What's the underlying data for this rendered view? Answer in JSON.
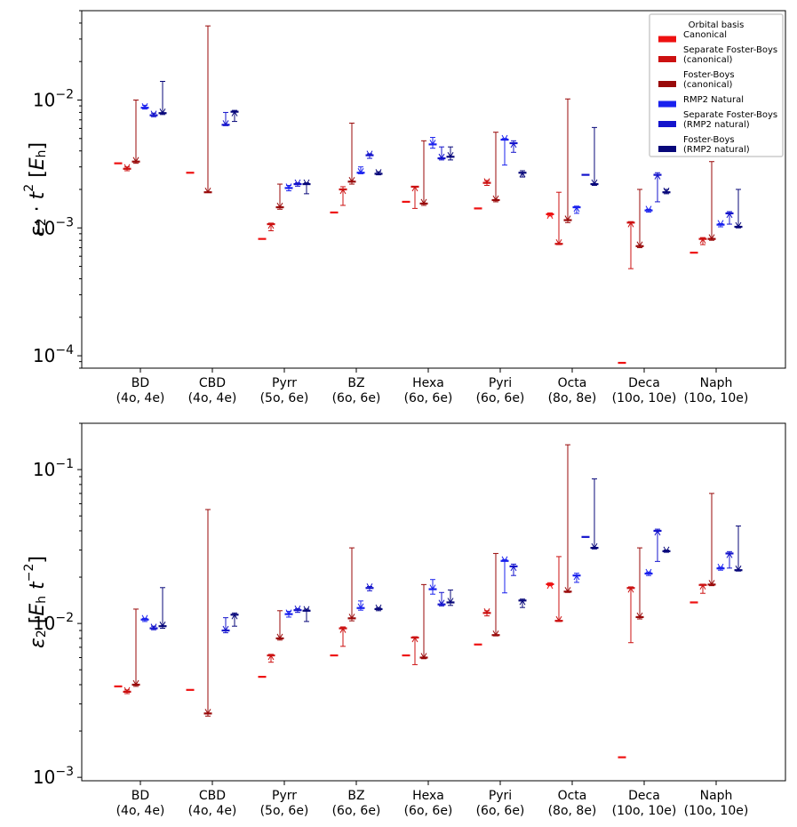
{
  "chart_data": [
    {
      "type": "scatter",
      "title": "",
      "yscale": "log",
      "ylim": [
        8e-05,
        0.05
      ],
      "ylabel": "ε2 · t^2 [Eh]",
      "xlabel": "",
      "yticks": [
        {
          "value": 0.0001,
          "mantissa": "10",
          "exp": "−4"
        },
        {
          "value": 0.001,
          "mantissa": "10",
          "exp": "−3"
        },
        {
          "value": 0.01,
          "mantissa": "10",
          "exp": "−2"
        }
      ],
      "legend": {
        "title": "Orbital basis",
        "position": "top-right",
        "entries": [
          {
            "lines": [
              "Canonical"
            ],
            "color": "#ee1111"
          },
          {
            "lines": [
              "Separate Foster-Boys",
              "(canonical)"
            ],
            "color": "#cc1111"
          },
          {
            "lines": [
              "Foster-Boys",
              "(canonical)"
            ],
            "color": "#990a0a"
          },
          {
            "lines": [
              "RMP2 Natural"
            ],
            "color": "#1a22ee"
          },
          {
            "lines": [
              "Separate Foster-Boys",
              "(RMP2 natural)"
            ],
            "color": "#1414cc"
          },
          {
            "lines": [
              "Foster-Boys",
              "(RMP2 natural)"
            ],
            "color": "#08087a"
          }
        ]
      },
      "categories": [
        {
          "name": "BD",
          "sub": "(4o, 4e)",
          "series": [
            {
              "v": 0.0032
            },
            {
              "v": 0.0029,
              "lo": 0.0028,
              "hi": 0.003,
              "d": "down"
            },
            {
              "v": 0.0033,
              "lo": 0.0032,
              "hi": 0.01,
              "d": "down"
            },
            {
              "v": 0.0087,
              "lo": 0.0085,
              "hi": 0.0091,
              "d": "down"
            },
            {
              "v": 0.0076,
              "lo": 0.0074,
              "hi": 0.0079,
              "d": "down"
            },
            {
              "v": 0.0079,
              "lo": 0.0077,
              "hi": 0.014,
              "d": "down"
            }
          ]
        },
        {
          "name": "CBD",
          "sub": "(4o, 4e)",
          "series": [
            {
              "v": 0.0027
            },
            null,
            {
              "v": 0.0019,
              "lo": 0.0019,
              "hi": 0.038,
              "d": "down"
            },
            null,
            {
              "v": 0.0064,
              "lo": 0.0063,
              "hi": 0.008,
              "d": "down"
            },
            {
              "v": 0.0081,
              "lo": 0.0068,
              "hi": 0.0083,
              "d": "up"
            }
          ]
        },
        {
          "name": "Pyrr",
          "sub": "(5o, 6e)",
          "series": [
            {
              "v": 0.00082
            },
            {
              "v": 0.00107,
              "lo": 0.00095,
              "hi": 0.00109,
              "d": "up"
            },
            {
              "v": 0.00145,
              "lo": 0.0014,
              "hi": 0.0022,
              "d": "down"
            },
            {
              "v": 0.00205,
              "lo": 0.00195,
              "hi": 0.00215,
              "d": "down"
            },
            {
              "v": 0.0022,
              "lo": 0.00212,
              "hi": 0.00225,
              "d": "down"
            },
            {
              "v": 0.0022,
              "lo": 0.00185,
              "hi": 0.00225,
              "d": "down"
            }
          ]
        },
        {
          "name": "BZ",
          "sub": "(6o, 6e)",
          "series": [
            {
              "v": 0.00132
            },
            {
              "v": 0.002,
              "lo": 0.0015,
              "hi": 0.0021,
              "d": "up"
            },
            {
              "v": 0.0023,
              "lo": 0.0022,
              "hi": 0.0066,
              "d": "down"
            },
            {
              "v": 0.0027,
              "lo": 0.00265,
              "hi": 0.003,
              "d": "down"
            },
            {
              "v": 0.0037,
              "lo": 0.0035,
              "hi": 0.0038,
              "d": "down"
            },
            {
              "v": 0.00265,
              "lo": 0.0026,
              "hi": 0.00275,
              "d": "down"
            }
          ]
        },
        {
          "name": "Hexa",
          "sub": "(6o, 6e)",
          "series": [
            {
              "v": 0.0016
            },
            {
              "v": 0.0021,
              "lo": 0.00142,
              "hi": 0.0021,
              "d": "up"
            },
            {
              "v": 0.00155,
              "lo": 0.0015,
              "hi": 0.0048,
              "d": "down"
            },
            {
              "v": 0.0045,
              "lo": 0.0042,
              "hi": 0.0051,
              "d": "down"
            },
            {
              "v": 0.0035,
              "lo": 0.0034,
              "hi": 0.0043,
              "d": "down"
            },
            {
              "v": 0.0036,
              "lo": 0.0034,
              "hi": 0.0043,
              "d": "down"
            }
          ]
        },
        {
          "name": "Pyri",
          "sub": "(6o, 6e)",
          "series": [
            {
              "v": 0.00142
            },
            {
              "v": 0.00225,
              "lo": 0.00215,
              "hi": 0.00235,
              "d": "down"
            },
            {
              "v": 0.00165,
              "lo": 0.0016,
              "hi": 0.0056,
              "d": "down"
            },
            {
              "v": 0.0049,
              "lo": 0.0031,
              "hi": 0.005,
              "d": "down"
            },
            {
              "v": 0.0046,
              "lo": 0.0039,
              "hi": 0.0048,
              "d": "up"
            },
            {
              "v": 0.0027,
              "lo": 0.0025,
              "hi": 0.0028,
              "d": "up"
            }
          ]
        },
        {
          "name": "Octa",
          "sub": "(8o, 8e)",
          "series": [
            {
              "v": 0.00128,
              "lo": 0.00124,
              "hi": 0.00131,
              "d": "up"
            },
            {
              "v": 0.00075,
              "lo": 0.00074,
              "hi": 0.0019,
              "d": "down"
            },
            {
              "v": 0.00115,
              "lo": 0.0011,
              "hi": 0.0102,
              "d": "down"
            },
            {
              "v": 0.00145,
              "lo": 0.0013,
              "hi": 0.00148,
              "d": "up"
            },
            {
              "v": 0.0026
            },
            {
              "v": 0.0022,
              "lo": 0.00215,
              "hi": 0.0061,
              "d": "down"
            }
          ]
        },
        {
          "name": "Deca",
          "sub": "(10o, 10e)",
          "series": [
            {
              "v": 8.8e-05
            },
            {
              "v": 0.0011,
              "lo": 0.00048,
              "hi": 0.00112,
              "d": "up"
            },
            {
              "v": 0.00072,
              "lo": 0.0007,
              "hi": 0.002,
              "d": "down"
            },
            {
              "v": 0.00137,
              "lo": 0.00133,
              "hi": 0.0014,
              "d": "down"
            },
            {
              "v": 0.0026,
              "lo": 0.0016,
              "hi": 0.0027,
              "d": "up"
            },
            {
              "v": 0.0019,
              "lo": 0.00185,
              "hi": 0.002,
              "d": "down"
            }
          ]
        },
        {
          "name": "Naph",
          "sub": "(10o, 10e)",
          "series": [
            {
              "v": 0.00064
            },
            {
              "v": 0.00082,
              "lo": 0.00074,
              "hi": 0.00084,
              "d": "up"
            },
            {
              "v": 0.00082,
              "lo": 0.0008,
              "hi": 0.0033,
              "d": "down"
            },
            {
              "v": 0.00106,
              "lo": 0.00102,
              "hi": 0.00108,
              "d": "down"
            },
            {
              "v": 0.0013,
              "lo": 0.00107,
              "hi": 0.00134,
              "d": "up"
            },
            {
              "v": 0.00102,
              "lo": 0.001,
              "hi": 0.002,
              "d": "down"
            }
          ]
        }
      ]
    },
    {
      "type": "scatter",
      "title": "",
      "yscale": "log",
      "ylim": [
        0.00095,
        0.2
      ],
      "ylabel": "ε2 [Eh t^−2]",
      "xlabel": "",
      "yticks": [
        {
          "value": 0.001,
          "mantissa": "10",
          "exp": "−3"
        },
        {
          "value": 0.01,
          "mantissa": "10",
          "exp": "−2"
        },
        {
          "value": 0.1,
          "mantissa": "10",
          "exp": "−1"
        }
      ],
      "categories": [
        {
          "name": "BD",
          "sub": "(4o, 4e)",
          "series": [
            {
              "v": 0.0039
            },
            {
              "v": 0.0036,
              "lo": 0.0035,
              "hi": 0.0037,
              "d": "down"
            },
            {
              "v": 0.004,
              "lo": 0.0039,
              "hi": 0.0124,
              "d": "down"
            },
            {
              "v": 0.0106,
              "lo": 0.0103,
              "hi": 0.0108,
              "d": "down"
            },
            {
              "v": 0.0093,
              "lo": 0.0091,
              "hi": 0.0096,
              "d": "down"
            },
            {
              "v": 0.0096,
              "lo": 0.0093,
              "hi": 0.0171,
              "d": "down"
            }
          ]
        },
        {
          "name": "CBD",
          "sub": "(4o, 4e)",
          "series": [
            {
              "v": 0.0037
            },
            null,
            {
              "v": 0.0026,
              "lo": 0.0025,
              "hi": 0.055,
              "d": "down"
            },
            null,
            {
              "v": 0.009,
              "lo": 0.0087,
              "hi": 0.0109,
              "d": "down"
            },
            {
              "v": 0.0114,
              "lo": 0.0096,
              "hi": 0.0117,
              "d": "up"
            }
          ]
        },
        {
          "name": "Pyrr",
          "sub": "(5o, 6e)",
          "series": [
            {
              "v": 0.0045
            },
            {
              "v": 0.0062,
              "lo": 0.0056,
              "hi": 0.0063,
              "d": "up"
            },
            {
              "v": 0.008,
              "lo": 0.0078,
              "hi": 0.0121,
              "d": "down"
            },
            {
              "v": 0.0115,
              "lo": 0.011,
              "hi": 0.012,
              "d": "down"
            },
            {
              "v": 0.0122,
              "lo": 0.0118,
              "hi": 0.0125,
              "d": "down"
            },
            {
              "v": 0.0121,
              "lo": 0.0103,
              "hi": 0.0124,
              "d": "down"
            }
          ]
        },
        {
          "name": "BZ",
          "sub": "(6o, 6e)",
          "series": [
            {
              "v": 0.0062
            },
            {
              "v": 0.0093,
              "lo": 0.0071,
              "hi": 0.0095,
              "d": "up"
            },
            {
              "v": 0.0108,
              "lo": 0.0104,
              "hi": 0.031,
              "d": "down"
            },
            {
              "v": 0.0126,
              "lo": 0.0122,
              "hi": 0.014,
              "d": "down"
            },
            {
              "v": 0.017,
              "lo": 0.0163,
              "hi": 0.0174,
              "d": "down"
            },
            {
              "v": 0.0124,
              "lo": 0.0121,
              "hi": 0.0127,
              "d": "down"
            }
          ]
        },
        {
          "name": "Hexa",
          "sub": "(6o, 6e)",
          "series": [
            {
              "v": 0.0062
            },
            {
              "v": 0.0081,
              "lo": 0.0054,
              "hi": 0.0082,
              "d": "up"
            },
            {
              "v": 0.006,
              "lo": 0.0059,
              "hi": 0.0179,
              "d": "down"
            },
            {
              "v": 0.0167,
              "lo": 0.0155,
              "hi": 0.0193,
              "d": "down"
            },
            {
              "v": 0.0133,
              "lo": 0.013,
              "hi": 0.0159,
              "d": "down"
            },
            {
              "v": 0.0137,
              "lo": 0.0131,
              "hi": 0.0165,
              "d": "down"
            }
          ]
        },
        {
          "name": "Pyri",
          "sub": "(6o, 6e)",
          "series": [
            {
              "v": 0.0073
            },
            {
              "v": 0.0117,
              "lo": 0.0112,
              "hi": 0.0121,
              "d": "down"
            },
            {
              "v": 0.0084,
              "lo": 0.0083,
              "hi": 0.0285,
              "d": "down"
            },
            {
              "v": 0.0255,
              "lo": 0.0158,
              "hi": 0.026,
              "d": "down"
            },
            {
              "v": 0.0235,
              "lo": 0.0205,
              "hi": 0.0243,
              "d": "up"
            },
            {
              "v": 0.0141,
              "lo": 0.0127,
              "hi": 0.0144,
              "d": "up"
            }
          ]
        },
        {
          "name": "Octa",
          "sub": "(8o, 8e)",
          "series": [
            {
              "v": 0.018,
              "lo": 0.0176,
              "hi": 0.0184,
              "d": "up"
            },
            {
              "v": 0.0104,
              "lo": 0.0103,
              "hi": 0.0272,
              "d": "down"
            },
            {
              "v": 0.0161,
              "lo": 0.0159,
              "hi": 0.145,
              "d": "down"
            },
            {
              "v": 0.0205,
              "lo": 0.0185,
              "hi": 0.0212,
              "d": "up"
            },
            {
              "v": 0.0365
            },
            {
              "v": 0.031,
              "lo": 0.0305,
              "hi": 0.087,
              "d": "down"
            }
          ]
        },
        {
          "name": "Deca",
          "sub": "(10o, 10e)",
          "series": [
            {
              "v": 0.00135
            },
            {
              "v": 0.017,
              "lo": 0.0075,
              "hi": 0.0173,
              "d": "up"
            },
            {
              "v": 0.011,
              "lo": 0.0107,
              "hi": 0.031,
              "d": "down"
            },
            {
              "v": 0.0211,
              "lo": 0.0205,
              "hi": 0.0216,
              "d": "down"
            },
            {
              "v": 0.04,
              "lo": 0.0253,
              "hi": 0.041,
              "d": "up"
            },
            {
              "v": 0.0295,
              "lo": 0.029,
              "hi": 0.03,
              "d": "down"
            }
          ]
        },
        {
          "name": "Naph",
          "sub": "(10o, 10e)",
          "series": [
            {
              "v": 0.0137
            },
            {
              "v": 0.0178,
              "lo": 0.0157,
              "hi": 0.018,
              "d": "up"
            },
            {
              "v": 0.0179,
              "lo": 0.0176,
              "hi": 0.07,
              "d": "down"
            },
            {
              "v": 0.0228,
              "lo": 0.0222,
              "hi": 0.0232,
              "d": "down"
            },
            {
              "v": 0.0285,
              "lo": 0.0229,
              "hi": 0.0293,
              "d": "up"
            },
            {
              "v": 0.0222,
              "lo": 0.0219,
              "hi": 0.043,
              "d": "down"
            }
          ]
        }
      ]
    }
  ]
}
